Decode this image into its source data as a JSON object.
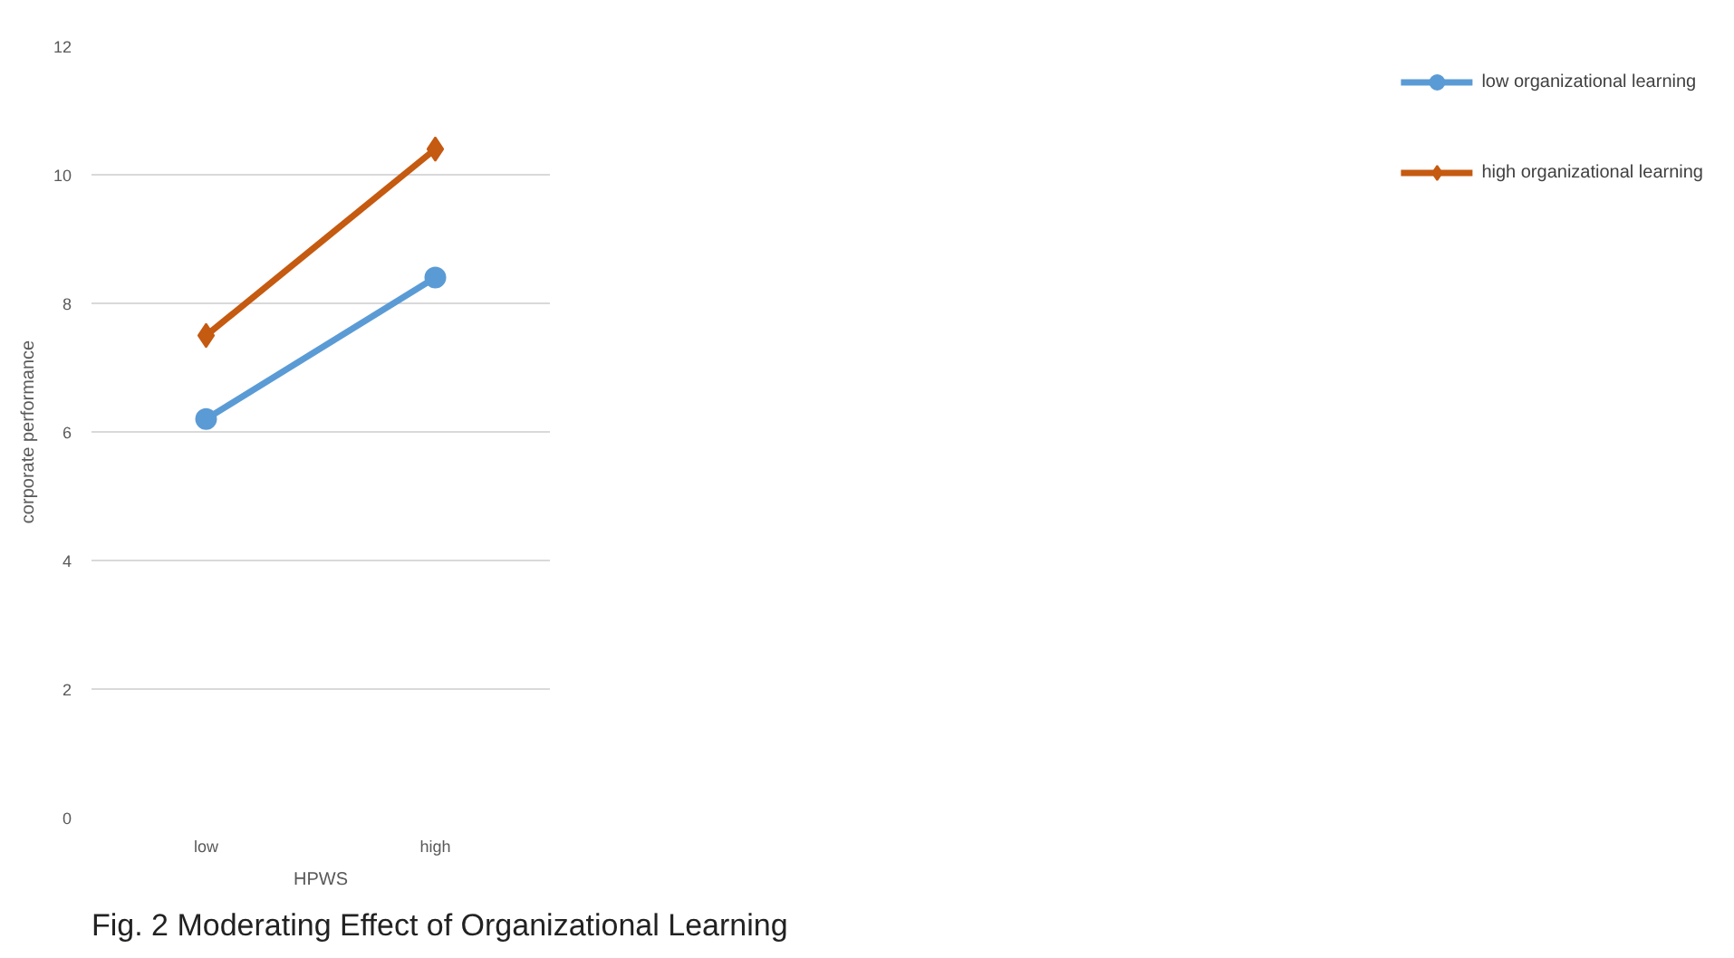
{
  "chart_data": {
    "type": "line",
    "title": "Fig. 2 Moderating Effect of Organizational Learning",
    "xlabel": "HPWS",
    "ylabel": "corporate performance",
    "categories": [
      "low",
      "high"
    ],
    "series": [
      {
        "name": "low organizational learning",
        "color": "#5b9bd5",
        "values": [
          6.2,
          8.4
        ],
        "marker": "circle"
      },
      {
        "name": "high organizational learning",
        "color": "#c55a11",
        "values": [
          7.5,
          10.4
        ],
        "marker": "diamond"
      }
    ],
    "ylim": [
      0,
      12
    ],
    "yticks": [
      0,
      2,
      4,
      6,
      8,
      10,
      12
    ],
    "grid": "y",
    "legend": "right",
    "line_style": "solid"
  }
}
